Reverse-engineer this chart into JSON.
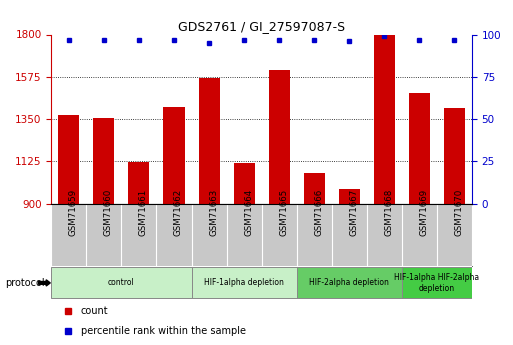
{
  "title": "GDS2761 / GI_27597087-S",
  "samples": [
    "GSM71659",
    "GSM71660",
    "GSM71661",
    "GSM71662",
    "GSM71663",
    "GSM71664",
    "GSM71665",
    "GSM71666",
    "GSM71667",
    "GSM71668",
    "GSM71669",
    "GSM71670"
  ],
  "counts": [
    1370,
    1355,
    1120,
    1415,
    1570,
    1115,
    1610,
    1060,
    980,
    1800,
    1490,
    1410
  ],
  "percentiles": [
    97,
    97,
    97,
    97,
    95,
    97,
    97,
    97,
    96,
    99,
    97,
    97
  ],
  "ylim_left": [
    900,
    1800
  ],
  "ylim_right": [
    0,
    100
  ],
  "yticks_left": [
    900,
    1125,
    1350,
    1575,
    1800
  ],
  "yticks_right": [
    0,
    25,
    50,
    75,
    100
  ],
  "bar_color": "#cc0000",
  "dot_color": "#0000cc",
  "grid_color": "#000000",
  "bg_color": "#ffffff",
  "xtick_bg_color": "#c8c8c8",
  "protocol_groups": [
    {
      "label": "control",
      "indices": [
        0,
        1,
        2,
        3
      ],
      "color": "#c8f0c8"
    },
    {
      "label": "HIF-1alpha depletion",
      "indices": [
        4,
        5,
        6
      ],
      "color": "#c8f0c8"
    },
    {
      "label": "HIF-2alpha depletion",
      "indices": [
        7,
        8,
        9
      ],
      "color": "#66cc66"
    },
    {
      "label": "HIF-1alpha HIF-2alpha\ndepletion",
      "indices": [
        10,
        11
      ],
      "color": "#44cc44"
    }
  ],
  "protocol_label": "protocol",
  "legend_items": [
    {
      "color": "#cc0000",
      "label": "count"
    },
    {
      "color": "#0000cc",
      "label": "percentile rank within the sample"
    }
  ]
}
